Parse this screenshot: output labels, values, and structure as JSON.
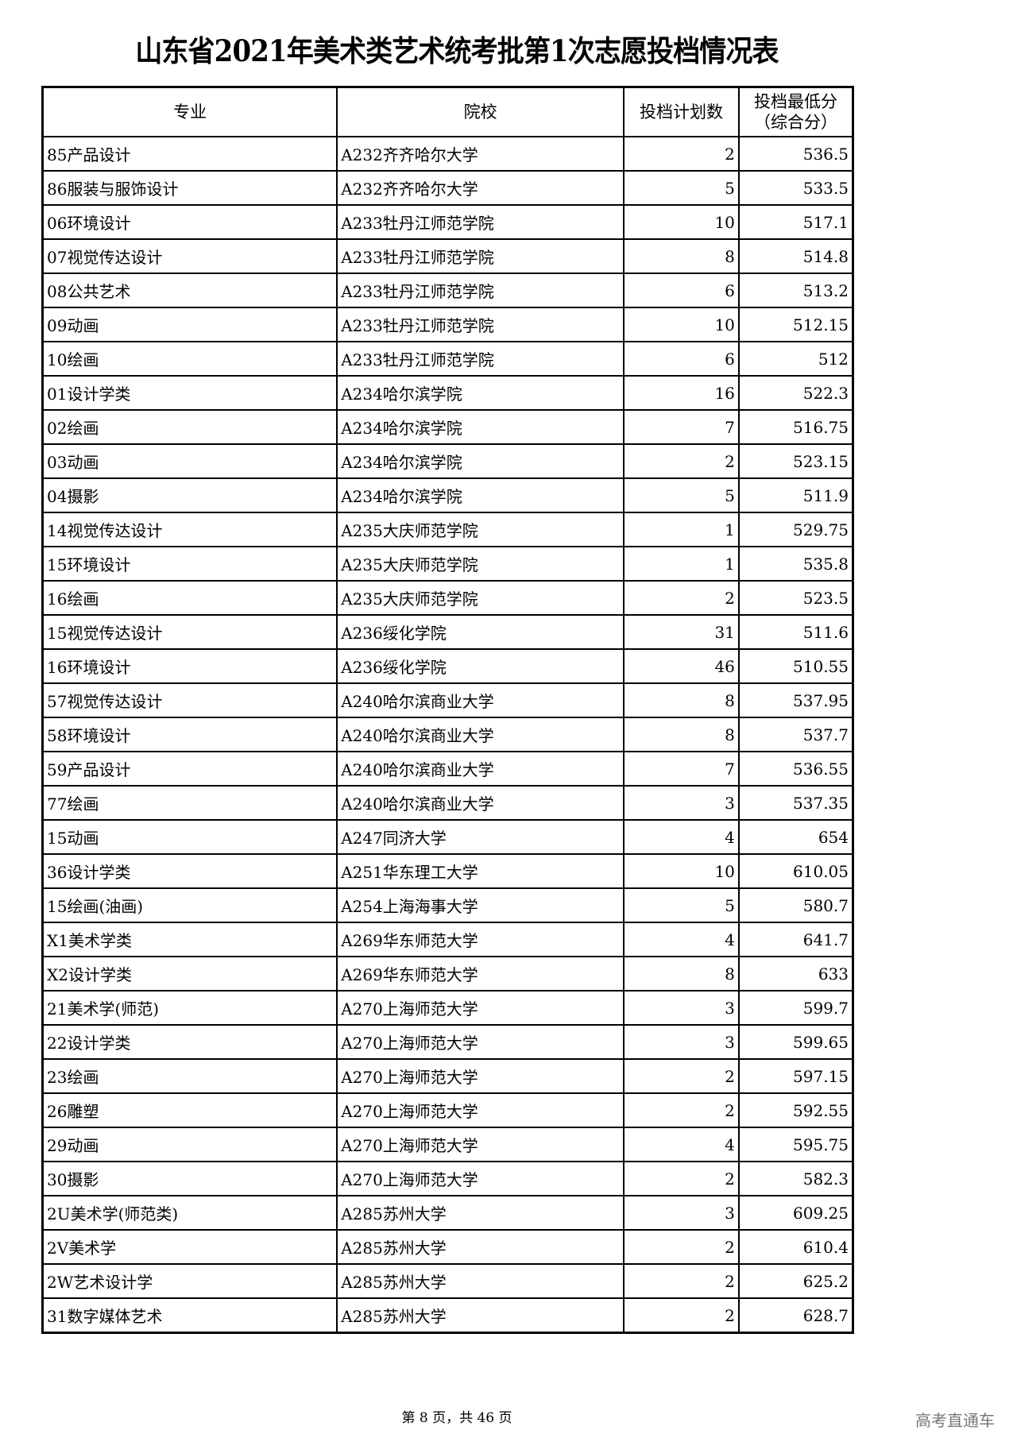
{
  "title": "山东省2021年美术类艺术统考批第1次志愿投档情况表",
  "headers": [
    "专业",
    "院校",
    "投档计划数",
    "投档最低分\n（综合分）"
  ],
  "rows": [
    [
      "85产品设计",
      "A232齐齐哈尔大学",
      "2",
      "536.5"
    ],
    [
      "86服装与服饰设计",
      "A232齐齐哈尔大学",
      "5",
      "533.5"
    ],
    [
      "06环境设计",
      "A233牡丹江师范学院",
      "10",
      "517.1"
    ],
    [
      "07视觉传达设计",
      "A233牡丹江师范学院",
      "8",
      "514.8"
    ],
    [
      "08公共艺术",
      "A233牡丹江师范学院",
      "6",
      "513.2"
    ],
    [
      "09动画",
      "A233牡丹江师范学院",
      "10",
      "512.15"
    ],
    [
      "10绘画",
      "A233牡丹江师范学院",
      "6",
      "512"
    ],
    [
      "01设计学类",
      "A234哈尔滨学院",
      "16",
      "522.3"
    ],
    [
      "02绘画",
      "A234哈尔滨学院",
      "7",
      "516.75"
    ],
    [
      "03动画",
      "A234哈尔滨学院",
      "2",
      "523.15"
    ],
    [
      "04摄影",
      "A234哈尔滨学院",
      "5",
      "511.9"
    ],
    [
      "14视觉传达设计",
      "A235大庆师范学院",
      "1",
      "529.75"
    ],
    [
      "15环境设计",
      "A235大庆师范学院",
      "1",
      "535.8"
    ],
    [
      "16绘画",
      "A235大庆师范学院",
      "2",
      "523.5"
    ],
    [
      "15视觉传达设计",
      "A236绥化学院",
      "31",
      "511.6"
    ],
    [
      "16环境设计",
      "A236绥化学院",
      "46",
      "510.55"
    ],
    [
      "57视觉传达设计",
      "A240哈尔滨商业大学",
      "8",
      "537.95"
    ],
    [
      "58环境设计",
      "A240哈尔滨商业大学",
      "8",
      "537.7"
    ],
    [
      "59产品设计",
      "A240哈尔滨商业大学",
      "7",
      "536.55"
    ],
    [
      "77绘画",
      "A240哈尔滨商业大学",
      "3",
      "537.35"
    ],
    [
      "15动画",
      "A247同济大学",
      "4",
      "654"
    ],
    [
      "36设计学类",
      "A251华东理工大学",
      "10",
      "610.05"
    ],
    [
      "15绘画(油画)",
      "A254上海海事大学",
      "5",
      "580.7"
    ],
    [
      "X1美术学类",
      "A269华东师范大学",
      "4",
      "641.7"
    ],
    [
      "X2设计学类",
      "A269华东师范大学",
      "8",
      "633"
    ],
    [
      "21美术学(师范)",
      "A270上海师范大学",
      "3",
      "599.7"
    ],
    [
      "22设计学类",
      "A270上海师范大学",
      "3",
      "599.65"
    ],
    [
      "23绘画",
      "A270上海师范大学",
      "2",
      "597.15"
    ],
    [
      "26雕塑",
      "A270上海师范大学",
      "2",
      "592.55"
    ],
    [
      "29动画",
      "A270上海师范大学",
      "4",
      "595.75"
    ],
    [
      "30摄影",
      "A270上海师范大学",
      "2",
      "582.3"
    ],
    [
      "2U美术学(师范类)",
      "A285苏州大学",
      "3",
      "609.25"
    ],
    [
      "2V美术学",
      "A285苏州大学",
      "2",
      "610.4"
    ],
    [
      "2W艺术设计学",
      "A285苏州大学",
      "2",
      "625.2"
    ],
    [
      "31数字媒体艺术",
      "A285苏州大学",
      "2",
      "628.7"
    ]
  ],
  "footer": "第 8 页，共 46 页",
  "watermark": "高考直通车"
}
